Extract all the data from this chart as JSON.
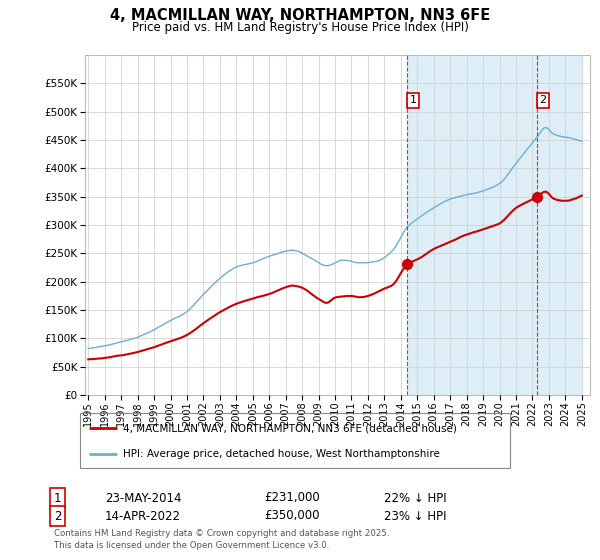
{
  "title": "4, MACMILLAN WAY, NORTHAMPTON, NN3 6FE",
  "subtitle": "Price paid vs. HM Land Registry's House Price Index (HPI)",
  "legend_line1": "4, MACMILLAN WAY, NORTHAMPTON, NN3 6FE (detached house)",
  "legend_line2": "HPI: Average price, detached house, West Northamptonshire",
  "footer": "Contains HM Land Registry data © Crown copyright and database right 2025.\nThis data is licensed under the Open Government Licence v3.0.",
  "annotation1_date": "23-MAY-2014",
  "annotation1_price": "£231,000",
  "annotation1_hpi": "22% ↓ HPI",
  "annotation2_date": "14-APR-2022",
  "annotation2_price": "£350,000",
  "annotation2_hpi": "23% ↓ HPI",
  "hpi_line_color": "#6baed6",
  "hpi_fill_color": "#ddeef7",
  "price_color": "#cc0000",
  "vline_color": "#cc0000",
  "background_color": "#ffffff",
  "plot_bg_color": "#ffffff",
  "grid_color": "#cccccc",
  "sale1_year": 2014.38,
  "sale1_price": 231000,
  "sale2_year": 2022.28,
  "sale2_price": 350000
}
